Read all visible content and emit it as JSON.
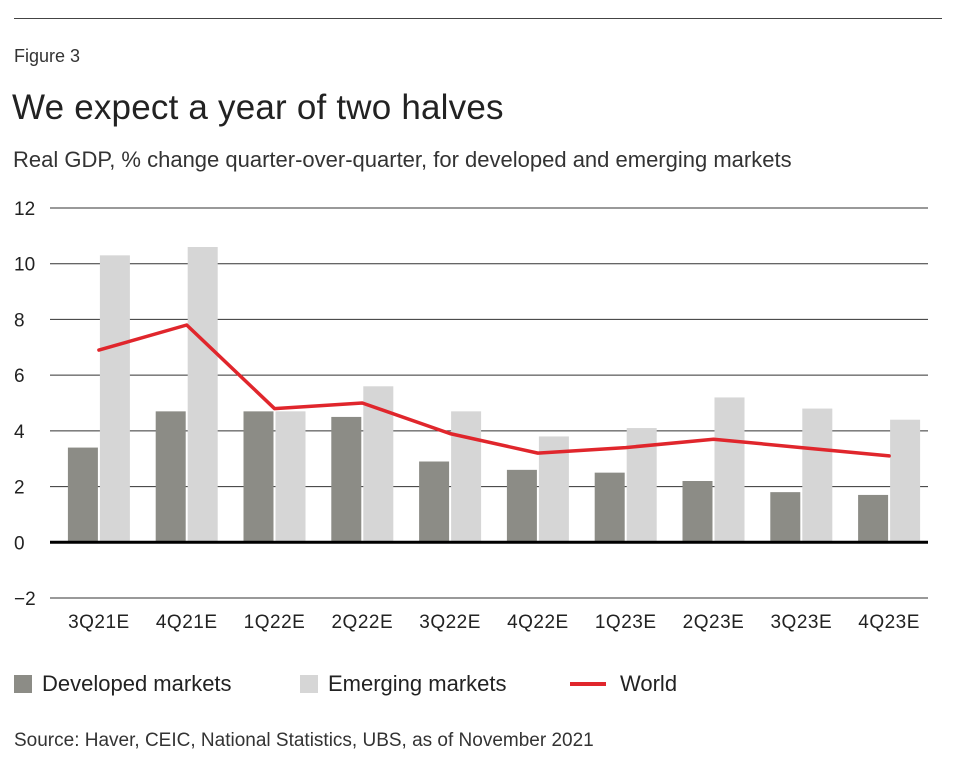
{
  "header": {
    "figure_label": "Figure 3",
    "title": "We expect a year of two halves",
    "subtitle": "Real GDP, % change quarter-over-quarter, for developed and emerging markets"
  },
  "chart_data": {
    "type": "bar",
    "categories": [
      "3Q21E",
      "4Q21E",
      "1Q22E",
      "2Q22E",
      "3Q22E",
      "4Q22E",
      "1Q23E",
      "2Q23E",
      "3Q23E",
      "4Q23E"
    ],
    "series": [
      {
        "name": "Developed markets",
        "kind": "bar",
        "color": "#8c8c86",
        "values": [
          3.4,
          4.7,
          4.7,
          4.5,
          2.9,
          2.6,
          2.5,
          2.2,
          1.8,
          1.7
        ]
      },
      {
        "name": "Emerging markets",
        "kind": "bar",
        "color": "#d6d6d6",
        "values": [
          10.3,
          10.6,
          4.7,
          5.6,
          4.7,
          3.8,
          4.1,
          5.2,
          4.8,
          4.4
        ]
      },
      {
        "name": "World",
        "kind": "line",
        "color": "#e0262c",
        "values": [
          6.9,
          7.8,
          4.8,
          5.0,
          3.9,
          3.2,
          3.4,
          3.7,
          3.4,
          3.1
        ]
      }
    ],
    "yticks": [
      12,
      10,
      8,
      6,
      4,
      2,
      0,
      -2
    ],
    "ylim": [
      -2,
      12
    ],
    "grid": true,
    "legend_position": "bottom"
  },
  "legend": {
    "developed": "Developed markets",
    "emerging": "Emerging markets",
    "world": "World"
  },
  "footer": {
    "source": "Source: Haver, CEIC, National Statistics, UBS, as of November 2021"
  }
}
